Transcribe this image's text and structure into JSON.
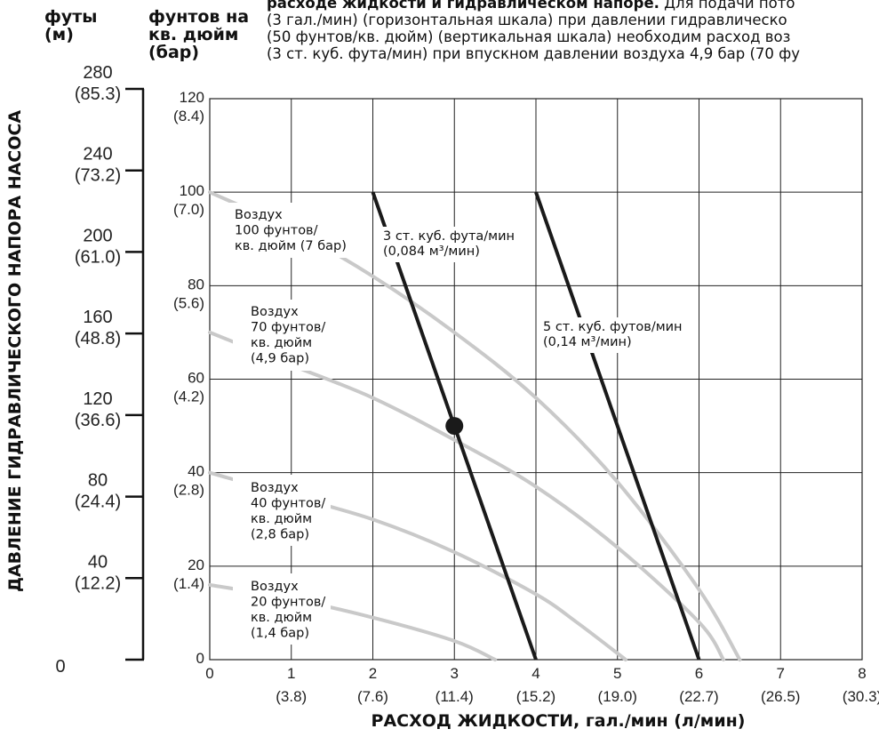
{
  "header": {
    "left_unit_top": "футы",
    "left_unit_bottom": "(м)",
    "mid_unit_line1": "фунтов на",
    "mid_unit_line2": "кв. дюйм",
    "mid_unit_line3": "(бар)"
  },
  "caption": {
    "bold": "расходе жидкости и гидравлическом напоре.",
    "line1_rest": " Для подачи пото",
    "line2": "(3 гал./мин) (горизонтальная шкала) при давлении гидравлическо",
    "line3": "(50 фунтов/кв. дюйм) (вертикальная шкала) необходим расход воз",
    "line4": "(3 ст. куб. фута/мин) при впускном давлении воздуха 4,9 бар (70 фу"
  },
  "chart_data": {
    "type": "line",
    "xlabel": "РАСХОД ЖИДКОСТИ, гал./мин (л/мин)",
    "ylabel": "ДАВЛЕНИЕ ГИДРАВЛИЧЕСКОГО НАПОРА НАСОСА",
    "xlim": [
      0,
      8
    ],
    "ylim": [
      0,
      120
    ],
    "grid": true,
    "x_ticks": [
      {
        "v": 0,
        "label": "0",
        "sub": ""
      },
      {
        "v": 1,
        "label": "1",
        "sub": "(3.8)"
      },
      {
        "v": 2,
        "label": "2",
        "sub": "(7.6)"
      },
      {
        "v": 3,
        "label": "3",
        "sub": "(11.4)"
      },
      {
        "v": 4,
        "label": "4",
        "sub": "(15.2)"
      },
      {
        "v": 5,
        "label": "5",
        "sub": "(19.0)"
      },
      {
        "v": 6,
        "label": "6",
        "sub": "(22.7)"
      },
      {
        "v": 7,
        "label": "7",
        "sub": "(26.5)"
      },
      {
        "v": 8,
        "label": "8",
        "sub": "(30.3)"
      }
    ],
    "y_ticks": [
      {
        "v": 0,
        "label": "0",
        "sub": ""
      },
      {
        "v": 20,
        "label": "20",
        "sub": "(1.4)"
      },
      {
        "v": 40,
        "label": "40",
        "sub": "(2.8)"
      },
      {
        "v": 60,
        "label": "60",
        "sub": "(4.2)"
      },
      {
        "v": 80,
        "label": "80",
        "sub": "(5.6)"
      },
      {
        "v": 100,
        "label": "100",
        "sub": "(7.0)"
      },
      {
        "v": 120,
        "label": "120",
        "sub": "(8.4)"
      }
    ],
    "feet_scale": [
      {
        "ft": 0,
        "label": "0",
        "sub": ""
      },
      {
        "ft": 40,
        "label": "40",
        "sub": "(12.2)"
      },
      {
        "ft": 80,
        "label": "80",
        "sub": "(24.4)"
      },
      {
        "ft": 120,
        "label": "120",
        "sub": "(36.6)"
      },
      {
        "ft": 160,
        "label": "160",
        "sub": "(48.8)"
      },
      {
        "ft": 200,
        "label": "200",
        "sub": "(61.0)"
      },
      {
        "ft": 240,
        "label": "240",
        "sub": "(73.2)"
      },
      {
        "ft": 280,
        "label": "280",
        "sub": "(85.3)"
      }
    ],
    "air_pressure_curves": [
      {
        "label": [
          "Воздух",
          "100 фунтов/",
          "кв. дюйм (7 бар)"
        ],
        "color": "#c9c9c9",
        "x": [
          0,
          1,
          2,
          3,
          4,
          5,
          6,
          6.5
        ],
        "y": [
          100,
          92,
          82,
          70,
          56,
          38,
          15,
          0
        ]
      },
      {
        "label": [
          "Воздух",
          "70 фунтов/",
          "кв. дюйм",
          "(4,9 бар)"
        ],
        "color": "#c9c9c9",
        "x": [
          0,
          1,
          2,
          3,
          4,
          5,
          6,
          6.3
        ],
        "y": [
          70,
          63,
          56,
          47,
          37,
          24,
          8,
          0
        ]
      },
      {
        "label": [
          "Воздух",
          "40 фунтов/",
          "кв. дюйм",
          "(2,8 бар)"
        ],
        "color": "#c9c9c9",
        "x": [
          0,
          1,
          2,
          3,
          4,
          4.5,
          5.1
        ],
        "y": [
          40,
          35,
          30,
          23,
          14,
          8,
          0
        ]
      },
      {
        "label": [
          "Воздух",
          "20 фунтов/",
          "кв. дюйм",
          "(1,4 бар)"
        ],
        "color": "#c9c9c9",
        "x": [
          0,
          1,
          2,
          3,
          3.5
        ],
        "y": [
          16,
          13,
          9,
          4,
          0
        ]
      }
    ],
    "air_flow_lines": [
      {
        "label": [
          "3 ст. куб. фута/мин",
          "(0,084 м³/мин)"
        ],
        "color": "#1a1a1a",
        "x": [
          2,
          4
        ],
        "y": [
          100,
          0
        ]
      },
      {
        "label": [
          "5 ст. куб. футов/мин",
          "(0,14 м³/мин)"
        ],
        "color": "#1a1a1a",
        "x": [
          4,
          6
        ],
        "y": [
          100,
          0
        ]
      }
    ],
    "operating_point": {
      "x": 3,
      "y": 50
    }
  }
}
